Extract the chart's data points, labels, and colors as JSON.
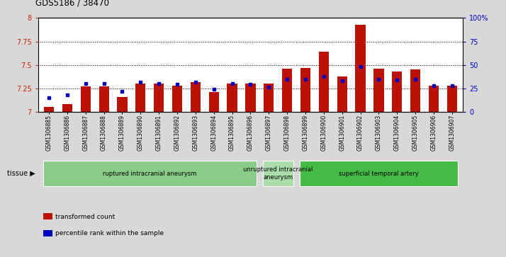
{
  "title": "GDS5186 / 38470",
  "samples": [
    "GSM1306885",
    "GSM1306886",
    "GSM1306887",
    "GSM1306888",
    "GSM1306889",
    "GSM1306890",
    "GSM1306891",
    "GSM1306892",
    "GSM1306893",
    "GSM1306894",
    "GSM1306895",
    "GSM1306896",
    "GSM1306897",
    "GSM1306898",
    "GSM1306899",
    "GSM1306900",
    "GSM1306901",
    "GSM1306902",
    "GSM1306903",
    "GSM1306904",
    "GSM1306905",
    "GSM1306906",
    "GSM1306907"
  ],
  "red_values": [
    7.05,
    7.08,
    7.27,
    7.27,
    7.16,
    7.3,
    7.3,
    7.28,
    7.32,
    7.21,
    7.3,
    7.3,
    7.3,
    7.46,
    7.47,
    7.64,
    7.38,
    7.93,
    7.46,
    7.43,
    7.45,
    7.28,
    7.28
  ],
  "blue_values": [
    15,
    18,
    30,
    30,
    22,
    32,
    30,
    29,
    32,
    24,
    30,
    29,
    26,
    35,
    35,
    38,
    33,
    48,
    35,
    34,
    35,
    28,
    28
  ],
  "ylim_left": [
    7.0,
    8.0
  ],
  "ylim_right": [
    0,
    100
  ],
  "yticks_left": [
    7.0,
    7.25,
    7.5,
    7.75,
    8.0
  ],
  "yticks_right": [
    0,
    25,
    50,
    75,
    100
  ],
  "ytick_labels_left": [
    "7",
    "7.25",
    "7.5",
    "7.75",
    "8"
  ],
  "ytick_labels_right": [
    "0",
    "25",
    "50",
    "75",
    "100%"
  ],
  "groups": [
    {
      "label": "ruptured intracranial aneurysm",
      "start": 0,
      "end": 12,
      "color": "#88cc88"
    },
    {
      "label": "unruptured intracranial\naneurysm",
      "start": 12,
      "end": 14,
      "color": "#aaddaa"
    },
    {
      "label": "superficial temporal artery",
      "start": 14,
      "end": 23,
      "color": "#44bb44"
    }
  ],
  "bar_color": "#bb1100",
  "blue_color": "#0000bb",
  "bg_color": "#d8d8d8",
  "plot_bg": "#ffffff",
  "legend_items": [
    {
      "color": "#bb1100",
      "label": "transformed count"
    },
    {
      "color": "#0000bb",
      "label": "percentile rank within the sample"
    }
  ],
  "tissue_label": "tissue"
}
